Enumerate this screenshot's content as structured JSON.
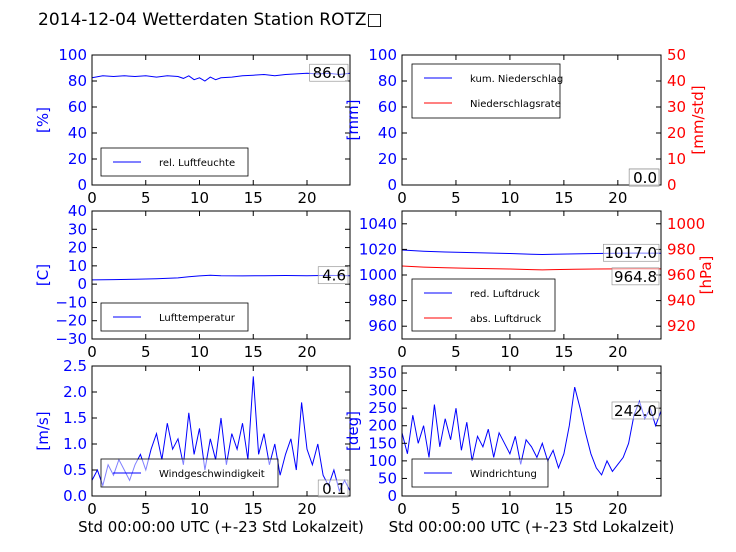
{
  "title": "2014-12-04 Wetterdaten Station ROTZ□",
  "colors": {
    "blue": "#0000ff",
    "red": "#ff0000",
    "black": "#000000"
  },
  "chart_data": [
    {
      "type": "line",
      "xlim": [
        0,
        24
      ],
      "ylim": [
        0,
        100
      ],
      "xticks": [
        "0",
        "5",
        "10",
        "15",
        "20"
      ],
      "yticks": [
        "0",
        "20",
        "40",
        "60",
        "80",
        "100"
      ],
      "ylabel": "[%]",
      "last_value": "86.0",
      "legend_position": "bottom-left",
      "series": [
        {
          "name": "rel. Luftfeuchte",
          "color": "#0000ff",
          "axis": "left",
          "x": [
            0,
            1,
            2,
            3,
            4,
            5,
            6,
            7,
            8,
            8.5,
            9,
            9.5,
            10,
            10.5,
            11,
            11.5,
            12,
            13,
            14,
            15,
            16,
            17,
            18,
            19,
            20,
            21,
            22,
            23,
            24
          ],
          "y": [
            82.5,
            84,
            83.5,
            84,
            83.5,
            84,
            83,
            84,
            83.5,
            82,
            84,
            81,
            82.5,
            80,
            83,
            81,
            82.5,
            83,
            84,
            84.5,
            85,
            84,
            85,
            85.5,
            86,
            85.5,
            86,
            85,
            86
          ]
        }
      ]
    },
    {
      "type": "line",
      "xlim": [
        0,
        24
      ],
      "ylim": [
        0,
        100
      ],
      "ylim_right": [
        0,
        50
      ],
      "xticks": [
        "0",
        "5",
        "10",
        "15",
        "20"
      ],
      "yticks": [
        "0",
        "20",
        "40",
        "60",
        "80",
        "100"
      ],
      "yticks_right": [
        "0",
        "10",
        "20",
        "30",
        "40",
        "50"
      ],
      "ylabel": "[mm]",
      "ylabel_right": "[mm/std]",
      "last_value": "0.0",
      "last_value_right": "0.0",
      "legend_position": "top-left",
      "series": [
        {
          "name": "kum. Niederschlag",
          "color": "#0000ff",
          "axis": "left",
          "x": [
            0,
            24
          ],
          "y": [
            0,
            0
          ]
        },
        {
          "name": "Niederschlagsrate",
          "color": "#ff0000",
          "axis": "right",
          "x": [
            0,
            24
          ],
          "y": [
            0,
            0
          ]
        }
      ]
    },
    {
      "type": "line",
      "xlim": [
        0,
        24
      ],
      "ylim": [
        -30,
        40
      ],
      "xticks": [
        "0",
        "5",
        "10",
        "15",
        "20"
      ],
      "yticks": [
        "−30",
        "−20",
        "−10",
        "0",
        "10",
        "20",
        "30",
        "40"
      ],
      "ylabel": "[C]",
      "last_value": "4.6",
      "legend_position": "bottom-left",
      "series": [
        {
          "name": "Lufttemperatur",
          "color": "#0000ff",
          "axis": "left",
          "x": [
            0,
            2,
            4,
            6,
            8,
            9,
            10,
            11,
            12,
            14,
            16,
            18,
            20,
            22,
            24
          ],
          "y": [
            2.3,
            2.5,
            2.7,
            3.0,
            3.4,
            4.0,
            4.5,
            4.9,
            4.6,
            4.5,
            4.6,
            4.7,
            4.6,
            4.8,
            4.6
          ]
        }
      ]
    },
    {
      "type": "line",
      "xlim": [
        0,
        24
      ],
      "ylim": [
        950,
        1050
      ],
      "ylim_right": [
        910,
        1010
      ],
      "xticks": [
        "0",
        "5",
        "10",
        "15",
        "20"
      ],
      "yticks": [
        "960",
        "980",
        "1000",
        "1020",
        "1040"
      ],
      "yticks_right": [
        "920",
        "940",
        "960",
        "980",
        "1000"
      ],
      "ylabel_right": "[hPa]",
      "last_value": "1017.0",
      "last_value_right": "964.8",
      "legend_position": "bottom-left",
      "series": [
        {
          "name": "red. Luftdruck",
          "color": "#0000ff",
          "axis": "left",
          "x": [
            0,
            2,
            4,
            6,
            8,
            10,
            12,
            13,
            14,
            16,
            18,
            20,
            22,
            24
          ],
          "y": [
            1019.5,
            1018.6,
            1018,
            1017.6,
            1017.2,
            1016.8,
            1016.2,
            1016,
            1016.2,
            1016.5,
            1016.8,
            1017,
            1017.1,
            1017
          ]
        },
        {
          "name": "abs. Luftdruck",
          "color": "#ff0000",
          "axis": "right",
          "x": [
            0,
            2,
            4,
            6,
            8,
            10,
            12,
            13,
            14,
            16,
            18,
            20,
            22,
            24
          ],
          "y": [
            967,
            966.2,
            965.6,
            965.3,
            965,
            964.7,
            964.2,
            964,
            964.2,
            964.5,
            964.7,
            964.8,
            964.9,
            964.8
          ]
        }
      ]
    },
    {
      "type": "line",
      "xlim": [
        0,
        24
      ],
      "ylim": [
        0,
        2.5
      ],
      "xticks": [
        "0",
        "5",
        "10",
        "15",
        "20"
      ],
      "yticks": [
        "0.0",
        "0.5",
        "1.0",
        "1.5",
        "2.0",
        "2.5"
      ],
      "ylabel": "[m/s]",
      "xlabel": "Std 00:00:00 UTC (+-23 Std Lokalzeit)",
      "last_value": "0.1",
      "legend_position": "bottom-left",
      "series": [
        {
          "name": "Windgeschwindigkeit",
          "color": "#0000ff",
          "axis": "left",
          "x": [
            0,
            0.5,
            1,
            1.5,
            2,
            2.5,
            3,
            3.5,
            4,
            4.5,
            5,
            5.5,
            6,
            6.5,
            7,
            7.5,
            8,
            8.5,
            9,
            9.5,
            10,
            10.5,
            11,
            11.5,
            12,
            12.5,
            13,
            13.5,
            14,
            14.5,
            15,
            15.5,
            16,
            16.5,
            17,
            17.5,
            18,
            18.5,
            19,
            19.5,
            20,
            20.5,
            21,
            21.5,
            22,
            22.5,
            23,
            23.5,
            24
          ],
          "y": [
            0.3,
            0.5,
            0.2,
            0.6,
            0.4,
            0.7,
            0.5,
            0.3,
            0.6,
            0.8,
            0.5,
            0.9,
            1.2,
            0.7,
            1.4,
            0.9,
            1.1,
            0.6,
            1.6,
            0.8,
            1.3,
            0.5,
            1.1,
            0.7,
            1.5,
            0.6,
            1.2,
            0.9,
            1.4,
            0.7,
            2.3,
            0.8,
            1.2,
            0.6,
            1.0,
            0.4,
            0.8,
            1.1,
            0.5,
            1.8,
            0.9,
            0.6,
            1.0,
            0.4,
            0.2,
            0.5,
            0.1,
            0.3,
            0.1
          ]
        }
      ]
    },
    {
      "type": "line",
      "xlim": [
        0,
        24
      ],
      "ylim": [
        0,
        370
      ],
      "xticks": [
        "0",
        "5",
        "10",
        "15",
        "20"
      ],
      "yticks": [
        "0",
        "50",
        "100",
        "150",
        "200",
        "250",
        "300",
        "350"
      ],
      "ylabel": "[deg]",
      "xlabel": "Std 00:00:00 UTC (+-23 Std Lokalzeit)",
      "last_value": "242.0",
      "legend_position": "bottom-left",
      "series": [
        {
          "name": "Windrichtung",
          "color": "#0000ff",
          "axis": "left",
          "x": [
            0,
            0.5,
            1,
            1.5,
            2,
            2.5,
            3,
            3.5,
            4,
            4.5,
            5,
            5.5,
            6,
            6.5,
            7,
            7.5,
            8,
            8.5,
            9,
            9.5,
            10,
            10.5,
            11,
            11.5,
            12,
            12.5,
            13,
            13.5,
            14,
            14.5,
            15,
            15.5,
            16,
            16.5,
            17,
            17.5,
            18,
            18.5,
            19,
            19.5,
            20,
            20.5,
            21,
            21.5,
            22,
            22.5,
            23,
            23.5,
            24
          ],
          "y": [
            180,
            120,
            230,
            150,
            200,
            110,
            260,
            140,
            220,
            160,
            250,
            130,
            210,
            100,
            170,
            140,
            190,
            110,
            180,
            150,
            120,
            170,
            90,
            160,
            140,
            110,
            150,
            100,
            130,
            80,
            120,
            200,
            310,
            250,
            180,
            120,
            80,
            60,
            100,
            70,
            90,
            110,
            150,
            230,
            270,
            220,
            250,
            200,
            242
          ]
        }
      ]
    }
  ]
}
